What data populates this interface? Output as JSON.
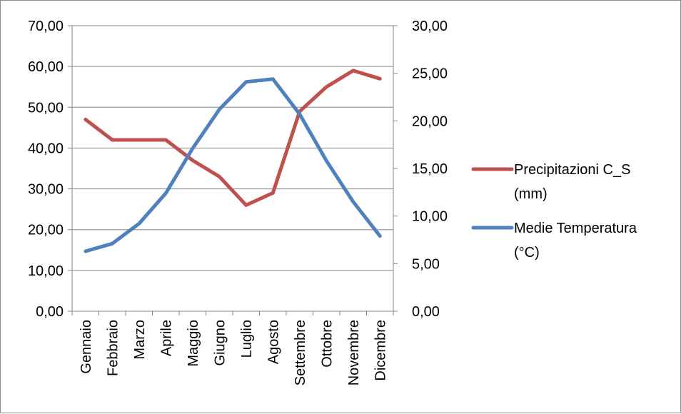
{
  "chart_data": {
    "type": "line",
    "categories": [
      "Gennaio",
      "Febbraio",
      "Marzo",
      "Aprile",
      "Maggio",
      "Giugno",
      "Luglio",
      "Agosto",
      "Settembre",
      "Ottobre",
      "Novembre",
      "Dicembre"
    ],
    "series": [
      {
        "name": "Precipitazioni C_S (mm)",
        "legend_lines": [
          "Precipitazioni C_S",
          "(mm)"
        ],
        "axis": "primary",
        "color": "#c0504d",
        "values": [
          47,
          42,
          42,
          42,
          37,
          33,
          26,
          29,
          49,
          55,
          59,
          57
        ]
      },
      {
        "name": "Medie Temperatura (°C)",
        "legend_lines": [
          "Medie Temperatura",
          "(°C)"
        ],
        "axis": "secondary",
        "color": "#4f81bd",
        "values": [
          6.3,
          7.1,
          9.2,
          12.4,
          17.1,
          21.2,
          24.1,
          24.4,
          20.7,
          15.8,
          11.5,
          7.9
        ]
      }
    ],
    "y_primary": {
      "lim": [
        0,
        70
      ],
      "ticks": [
        "0,00",
        "10,00",
        "20,00",
        "30,00",
        "40,00",
        "50,00",
        "60,00",
        "70,00"
      ]
    },
    "y_secondary": {
      "lim": [
        0,
        30
      ],
      "ticks": [
        "0,00",
        "5,00",
        "10,00",
        "15,00",
        "20,00",
        "25,00",
        "30,00"
      ]
    },
    "grid": true,
    "legend": "right"
  }
}
